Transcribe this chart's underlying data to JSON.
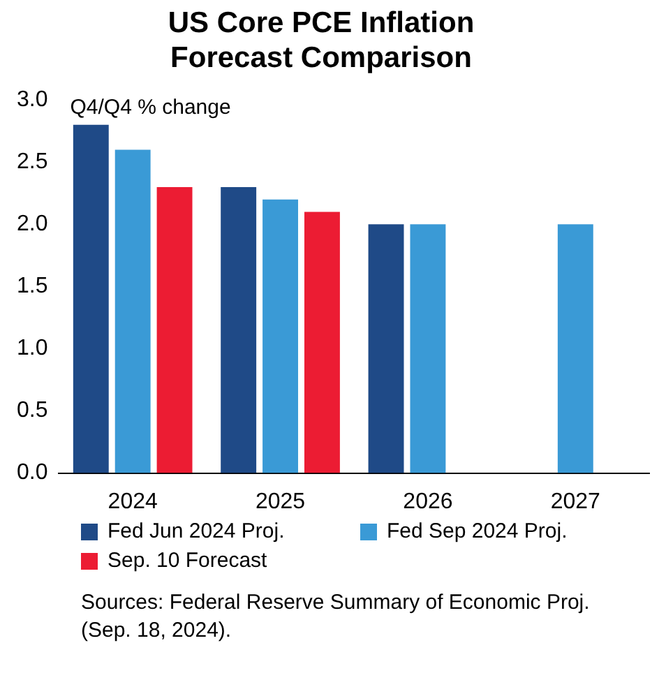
{
  "chart_data": {
    "type": "bar",
    "title": "US Core PCE Inflation Forecast Comparison",
    "ylabel": "Q4/Q4 % change",
    "categories": [
      "2024",
      "2025",
      "2026",
      "2027"
    ],
    "series": [
      {
        "name": "Fed Jun 2024 Proj.",
        "color": "#1f4a87",
        "values": [
          2.8,
          2.3,
          2.0,
          null
        ]
      },
      {
        "name": "Fed Sep 2024 Proj.",
        "color": "#3a9ad6",
        "values": [
          2.6,
          2.2,
          2.0,
          2.0
        ]
      },
      {
        "name": "Sep. 10 Forecast",
        "color": "#ec1c33",
        "values": [
          2.3,
          2.1,
          null,
          null
        ]
      }
    ],
    "ylim": [
      0,
      3
    ],
    "yticks": [
      {
        "value": 0,
        "label": "0.0"
      },
      {
        "value": 0.5,
        "label": "0.5"
      },
      {
        "value": 1,
        "label": "1.0"
      },
      {
        "value": 1.5,
        "label": "1.5"
      },
      {
        "value": 2,
        "label": "2.0"
      },
      {
        "value": 2.5,
        "label": "2.5"
      },
      {
        "value": 3,
        "label": "3.0"
      }
    ],
    "grid": false,
    "legend": "bottom",
    "annotations": [
      "Sources: Federal Reserve Summary of Economic Proj. (Sep. 18, 2024)."
    ]
  }
}
